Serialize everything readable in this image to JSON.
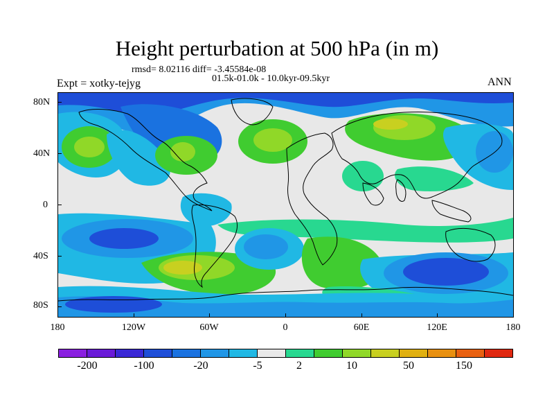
{
  "title": "Height perturbation at 500 hPa (in m)",
  "stats": "rmsd= 8.02116 diff= -3.45584e-08",
  "period": "01.5k-01.0k - 10.0kyr-09.5kyr",
  "experiment": "Expt = xotky-tejyg",
  "season": "ANN",
  "lat_labels": [
    "80N",
    "40N",
    "0",
    "40S",
    "80S"
  ],
  "lon_labels": [
    "180",
    "120W",
    "60W",
    "0",
    "60E",
    "120E",
    "180"
  ],
  "colorbar": {
    "colors": [
      "#8a1fe0",
      "#6a1ad8",
      "#3a28d6",
      "#1e4ed8",
      "#1a72e0",
      "#2096e6",
      "#20b8e4",
      "#e8e8e8",
      "#28d890",
      "#40cc30",
      "#90d828",
      "#c8d020",
      "#e0b010",
      "#e89010",
      "#e86010",
      "#e02810"
    ],
    "tick_labels": [
      "-200",
      "-100",
      "-20",
      "-5",
      "2",
      "10",
      "50",
      "150"
    ]
  },
  "map_colors": {
    "neutral": "#e8e8e8",
    "light_cyan": "#20b8e4",
    "mid_blue": "#2096e6",
    "blue": "#1a72e0",
    "deep_blue": "#1e4ed8",
    "green": "#28d890",
    "lime": "#40cc30",
    "yellow_green": "#90d828",
    "yellow": "#c8d020",
    "orange": "#e0b010"
  }
}
